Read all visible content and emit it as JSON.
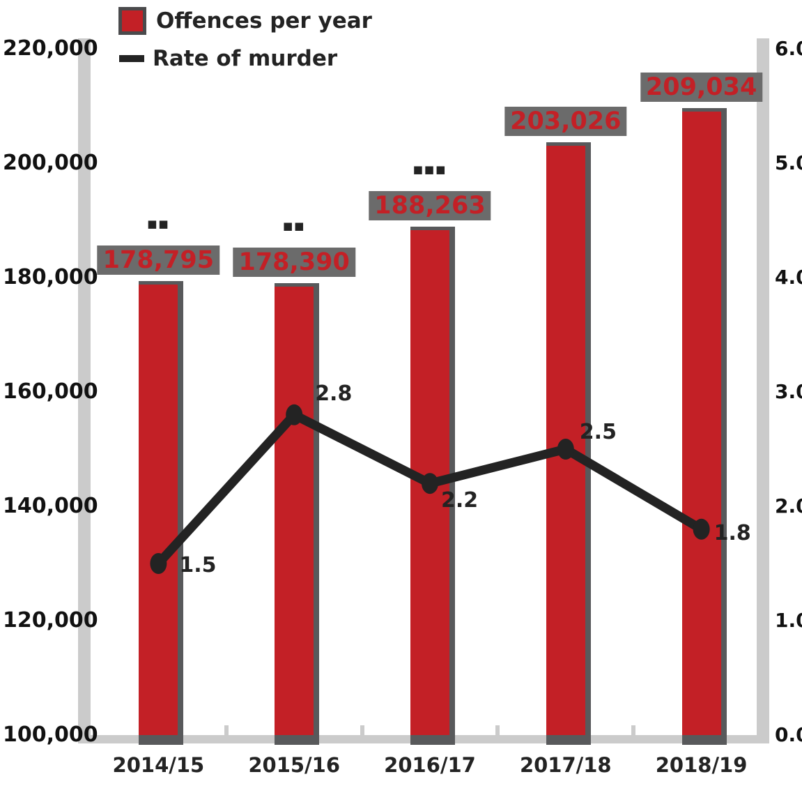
{
  "legend": {
    "items": [
      {
        "swatch": "red-square-swatch",
        "label": "Offences per year"
      },
      {
        "swatch": "dark-line-swatch",
        "label": "Rate of murder"
      }
    ]
  },
  "colors": {
    "bar": "#c32026",
    "bar_shadow": "#58595b",
    "value_label_text": "#c32026",
    "value_label_bg": "#6b6b6b",
    "line": "#232323",
    "axis_band": "#cbcbcb",
    "tick_text": "#111111"
  },
  "chart_data": {
    "type": "bar",
    "subtype": "bar-and-line-combo",
    "categories": [
      "2014/15",
      "2015/16",
      "2016/17",
      "2017/18",
      "2018/19"
    ],
    "series": [
      {
        "name": "Offences per year",
        "type": "bar",
        "axis": "left",
        "values": [
          178795,
          178390,
          188263,
          203026,
          209034
        ],
        "labels": [
          "178,795",
          "178,390",
          "188,263",
          "203,026",
          "209,034"
        ],
        "annotations": [
          "■■",
          "■■",
          "■■■",
          null,
          null
        ]
      },
      {
        "name": "Rate of murder",
        "type": "line",
        "axis": "right",
        "values": [
          1.5,
          2.8,
          2.2,
          2.5,
          1.8
        ],
        "labels": [
          "1.5",
          "2.8",
          "2.2",
          "2.5",
          "1.8"
        ]
      }
    ],
    "y_left": {
      "min": 100000,
      "max": 220000,
      "ticks": [
        {
          "v": 220000,
          "label": "220,000"
        },
        {
          "v": 200000,
          "label": "200,000"
        },
        {
          "v": 180000,
          "label": "180,000"
        },
        {
          "v": 160000,
          "label": "160,000"
        },
        {
          "v": 140000,
          "label": "140,000"
        },
        {
          "v": 120000,
          "label": "120,000"
        },
        {
          "v": 100000,
          "label": "100,000"
        }
      ]
    },
    "y_right": {
      "min": 0,
      "max": 6,
      "ticks": [
        {
          "v": 6,
          "label": "6.0"
        },
        {
          "v": 5,
          "label": "5.0"
        },
        {
          "v": 4,
          "label": "4.0"
        },
        {
          "v": 3,
          "label": "3.0"
        },
        {
          "v": 2,
          "label": "2.0"
        },
        {
          "v": 1,
          "label": "1.0"
        },
        {
          "v": 0,
          "label": "0.0"
        }
      ]
    },
    "grid": false,
    "legend_position": "top-left"
  }
}
